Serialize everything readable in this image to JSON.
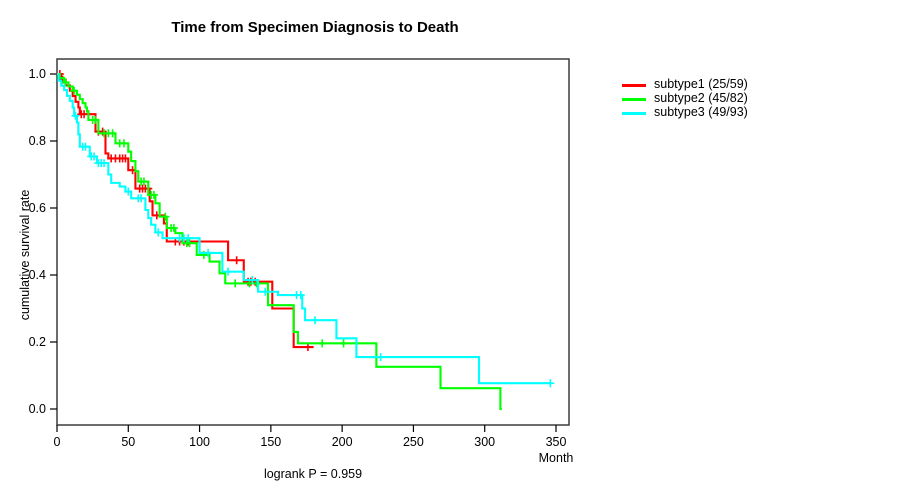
{
  "chart_data": {
    "type": "line",
    "variant": "kaplan-meier-step",
    "title": "Time from Specimen Diagnosis to Death",
    "xlabel": "Month",
    "ylabel": "cumulative survival rate",
    "annotation": "logrank P = 0.959",
    "xlim": [
      0,
      350
    ],
    "ylim": [
      0.0,
      1.0
    ],
    "grid": false,
    "legend_position": "right",
    "x_ticks": [
      "0",
      "50",
      "100",
      "150",
      "200",
      "250",
      "300",
      "350"
    ],
    "y_ticks": [
      "0.0",
      "0.2",
      "0.4",
      "0.6",
      "0.8",
      "1.0"
    ],
    "series": [
      {
        "name": "subtype1",
        "label": "subtype1 (25/59)",
        "color": "#FF0000",
        "events": 25,
        "n": 59,
        "end_month": 180,
        "steps": [
          [
            0,
            1.0
          ],
          [
            3,
            0.983
          ],
          [
            6,
            0.966
          ],
          [
            9,
            0.95
          ],
          [
            11,
            0.934
          ],
          [
            13,
            0.917
          ],
          [
            15,
            0.9
          ],
          [
            16,
            0.88
          ],
          [
            27,
            0.828
          ],
          [
            34,
            0.763
          ],
          [
            36,
            0.748
          ],
          [
            50,
            0.713
          ],
          [
            55,
            0.658
          ],
          [
            65,
            0.62
          ],
          [
            67,
            0.578
          ],
          [
            75,
            0.554
          ],
          [
            77,
            0.5
          ],
          [
            120,
            0.444
          ],
          [
            131,
            0.38
          ],
          [
            151,
            0.3
          ],
          [
            166,
            0.185
          ]
        ],
        "censors": [
          [
            2,
            1.0
          ],
          [
            4,
            0.983
          ],
          [
            17,
            0.88
          ],
          [
            19,
            0.88
          ],
          [
            22,
            0.88
          ],
          [
            29,
            0.828
          ],
          [
            32,
            0.828
          ],
          [
            38,
            0.748
          ],
          [
            41,
            0.748
          ],
          [
            44,
            0.748
          ],
          [
            46,
            0.748
          ],
          [
            48,
            0.748
          ],
          [
            53,
            0.713
          ],
          [
            58,
            0.658
          ],
          [
            60,
            0.658
          ],
          [
            62,
            0.658
          ],
          [
            64,
            0.658
          ],
          [
            70,
            0.578
          ],
          [
            83,
            0.5
          ],
          [
            86,
            0.5
          ],
          [
            89,
            0.5
          ],
          [
            92,
            0.5
          ],
          [
            126,
            0.444
          ],
          [
            134,
            0.38
          ],
          [
            136,
            0.38
          ],
          [
            139,
            0.38
          ],
          [
            176,
            0.185
          ]
        ]
      },
      {
        "name": "subtype2",
        "label": "subtype2 (45/82)",
        "color": "#00FF00",
        "events": 45,
        "n": 82,
        "end_month": 312,
        "steps": [
          [
            0,
            1.0
          ],
          [
            2,
            0.988
          ],
          [
            5,
            0.975
          ],
          [
            8,
            0.963
          ],
          [
            11,
            0.95
          ],
          [
            14,
            0.938
          ],
          [
            16,
            0.925
          ],
          [
            18,
            0.913
          ],
          [
            20,
            0.9
          ],
          [
            21,
            0.888
          ],
          [
            22,
            0.863
          ],
          [
            29,
            0.823
          ],
          [
            41,
            0.793
          ],
          [
            50,
            0.768
          ],
          [
            52,
            0.74
          ],
          [
            55,
            0.71
          ],
          [
            57,
            0.679
          ],
          [
            64,
            0.639
          ],
          [
            69,
            0.614
          ],
          [
            72,
            0.574
          ],
          [
            77,
            0.54
          ],
          [
            83,
            0.525
          ],
          [
            88,
            0.495
          ],
          [
            98,
            0.46
          ],
          [
            107,
            0.44
          ],
          [
            114,
            0.405
          ],
          [
            118,
            0.375
          ],
          [
            148,
            0.31
          ],
          [
            166,
            0.23
          ],
          [
            169,
            0.196
          ],
          [
            224,
            0.126
          ],
          [
            269,
            0.062
          ],
          [
            311,
            0.0
          ]
        ],
        "censors": [
          [
            6,
            0.975
          ],
          [
            12,
            0.95
          ],
          [
            25,
            0.863
          ],
          [
            27,
            0.863
          ],
          [
            33,
            0.823
          ],
          [
            36,
            0.823
          ],
          [
            39,
            0.823
          ],
          [
            44,
            0.793
          ],
          [
            47,
            0.793
          ],
          [
            59,
            0.679
          ],
          [
            61,
            0.679
          ],
          [
            66,
            0.639
          ],
          [
            68,
            0.639
          ],
          [
            76,
            0.574
          ],
          [
            80,
            0.54
          ],
          [
            82,
            0.54
          ],
          [
            91,
            0.495
          ],
          [
            93,
            0.495
          ],
          [
            103,
            0.46
          ],
          [
            125,
            0.375
          ],
          [
            135,
            0.375
          ],
          [
            140,
            0.375
          ],
          [
            186,
            0.196
          ],
          [
            201,
            0.196
          ]
        ]
      },
      {
        "name": "subtype3",
        "label": "subtype3 (49/93)",
        "color": "#00FFFF",
        "events": 49,
        "n": 93,
        "end_month": 346,
        "steps": [
          [
            0,
            1.0
          ],
          [
            1,
            0.98
          ],
          [
            3,
            0.965
          ],
          [
            5,
            0.952
          ],
          [
            7,
            0.935
          ],
          [
            9,
            0.92
          ],
          [
            11,
            0.9
          ],
          [
            12,
            0.875
          ],
          [
            14,
            0.855
          ],
          [
            15,
            0.82
          ],
          [
            16,
            0.783
          ],
          [
            23,
            0.754
          ],
          [
            28,
            0.734
          ],
          [
            36,
            0.7
          ],
          [
            38,
            0.675
          ],
          [
            44,
            0.664
          ],
          [
            48,
            0.649
          ],
          [
            52,
            0.629
          ],
          [
            62,
            0.594
          ],
          [
            64,
            0.57
          ],
          [
            66,
            0.55
          ],
          [
            69,
            0.527
          ],
          [
            74,
            0.51
          ],
          [
            100,
            0.466
          ],
          [
            116,
            0.41
          ],
          [
            131,
            0.385
          ],
          [
            141,
            0.35
          ],
          [
            155,
            0.34
          ],
          [
            172,
            0.3
          ],
          [
            174,
            0.265
          ],
          [
            196,
            0.211
          ],
          [
            210,
            0.155
          ],
          [
            296,
            0.077
          ]
        ],
        "censors": [
          [
            13,
            0.875
          ],
          [
            18,
            0.783
          ],
          [
            20,
            0.783
          ],
          [
            24,
            0.754
          ],
          [
            26,
            0.754
          ],
          [
            29,
            0.734
          ],
          [
            31,
            0.734
          ],
          [
            33,
            0.734
          ],
          [
            50,
            0.649
          ],
          [
            57,
            0.629
          ],
          [
            59,
            0.629
          ],
          [
            71,
            0.527
          ],
          [
            86,
            0.51
          ],
          [
            89,
            0.51
          ],
          [
            92,
            0.51
          ],
          [
            106,
            0.466
          ],
          [
            120,
            0.41
          ],
          [
            137,
            0.385
          ],
          [
            146,
            0.35
          ],
          [
            168,
            0.34
          ],
          [
            171,
            0.34
          ],
          [
            181,
            0.265
          ],
          [
            227,
            0.155
          ],
          [
            346,
            0.077
          ]
        ]
      }
    ]
  }
}
